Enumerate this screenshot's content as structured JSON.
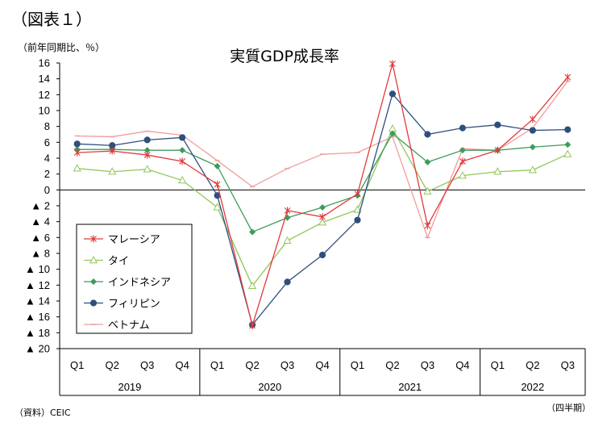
{
  "figure_label": "（図表１）",
  "unit_label": "（前年同期比、％）",
  "source": "（資料）CEIC",
  "period_label": "（四半期）",
  "chart_data": {
    "type": "line",
    "title": "実質GDP成長率",
    "quarters": [
      "Q1",
      "Q2",
      "Q3",
      "Q4",
      "Q1",
      "Q2",
      "Q3",
      "Q4",
      "Q1",
      "Q2",
      "Q3",
      "Q4",
      "Q1",
      "Q2",
      "Q3"
    ],
    "years": [
      {
        "label": "2019",
        "span": 4
      },
      {
        "label": "2020",
        "span": 4
      },
      {
        "label": "2021",
        "span": 4
      },
      {
        "label": "2022",
        "span": 3
      }
    ],
    "ylim": [
      -20,
      16
    ],
    "yticks": [
      {
        "v": 16,
        "label": "16"
      },
      {
        "v": 14,
        "label": "14"
      },
      {
        "v": 12,
        "label": "12"
      },
      {
        "v": 10,
        "label": "10"
      },
      {
        "v": 8,
        "label": "8"
      },
      {
        "v": 6,
        "label": "6"
      },
      {
        "v": 4,
        "label": "4"
      },
      {
        "v": 2,
        "label": "2"
      },
      {
        "v": 0,
        "label": "0"
      },
      {
        "v": -2,
        "label": "▲ 2"
      },
      {
        "v": -4,
        "label": "▲ 4"
      },
      {
        "v": -6,
        "label": "▲ 6"
      },
      {
        "v": -8,
        "label": "▲ 8"
      },
      {
        "v": -10,
        "label": "▲ 10"
      },
      {
        "v": -12,
        "label": "▲ 12"
      },
      {
        "v": -14,
        "label": "▲ 14"
      },
      {
        "v": -16,
        "label": "▲ 16"
      },
      {
        "v": -18,
        "label": "▲ 18"
      },
      {
        "v": -20,
        "label": "▲ 20"
      }
    ],
    "legend_position": "lower-left",
    "series": [
      {
        "name": "ベトナム",
        "color": "#f19c9c",
        "marker": "dash",
        "values": [
          6.8,
          6.7,
          7.4,
          6.9,
          3.7,
          0.4,
          2.7,
          4.5,
          4.7,
          6.7,
          -6.0,
          5.2,
          5.0,
          7.8,
          13.7
        ]
      },
      {
        "name": "タイ",
        "color": "#92c65a",
        "marker": "triangle",
        "values": [
          2.7,
          2.3,
          2.6,
          1.2,
          -2.2,
          -12.1,
          -6.4,
          -4.1,
          -2.5,
          7.7,
          -0.2,
          1.8,
          2.3,
          2.5,
          4.5
        ]
      },
      {
        "name": "インドネシア",
        "color": "#3f9b5c",
        "marker": "diamond",
        "values": [
          5.1,
          5.1,
          5.0,
          5.0,
          3.0,
          -5.3,
          -3.5,
          -2.2,
          -0.7,
          7.1,
          3.5,
          5.0,
          5.0,
          5.4,
          5.7
        ]
      },
      {
        "name": "フィリピン",
        "color": "#2e4f7d",
        "marker": "circle",
        "values": [
          5.8,
          5.6,
          6.3,
          6.6,
          -0.7,
          -17.0,
          -11.6,
          -8.2,
          -3.8,
          12.1,
          7.0,
          7.8,
          8.2,
          7.5,
          7.6
        ]
      },
      {
        "name": "マレーシア",
        "color": "#e23a3a",
        "marker": "asterisk",
        "values": [
          4.7,
          4.9,
          4.4,
          3.6,
          0.7,
          -17.1,
          -2.6,
          -3.4,
          -0.5,
          15.9,
          -4.5,
          3.6,
          5.0,
          8.9,
          14.2
        ]
      }
    ],
    "legend_order": [
      "マレーシア",
      "タイ",
      "インドネシア",
      "フィリピン",
      "ベトナム"
    ]
  }
}
